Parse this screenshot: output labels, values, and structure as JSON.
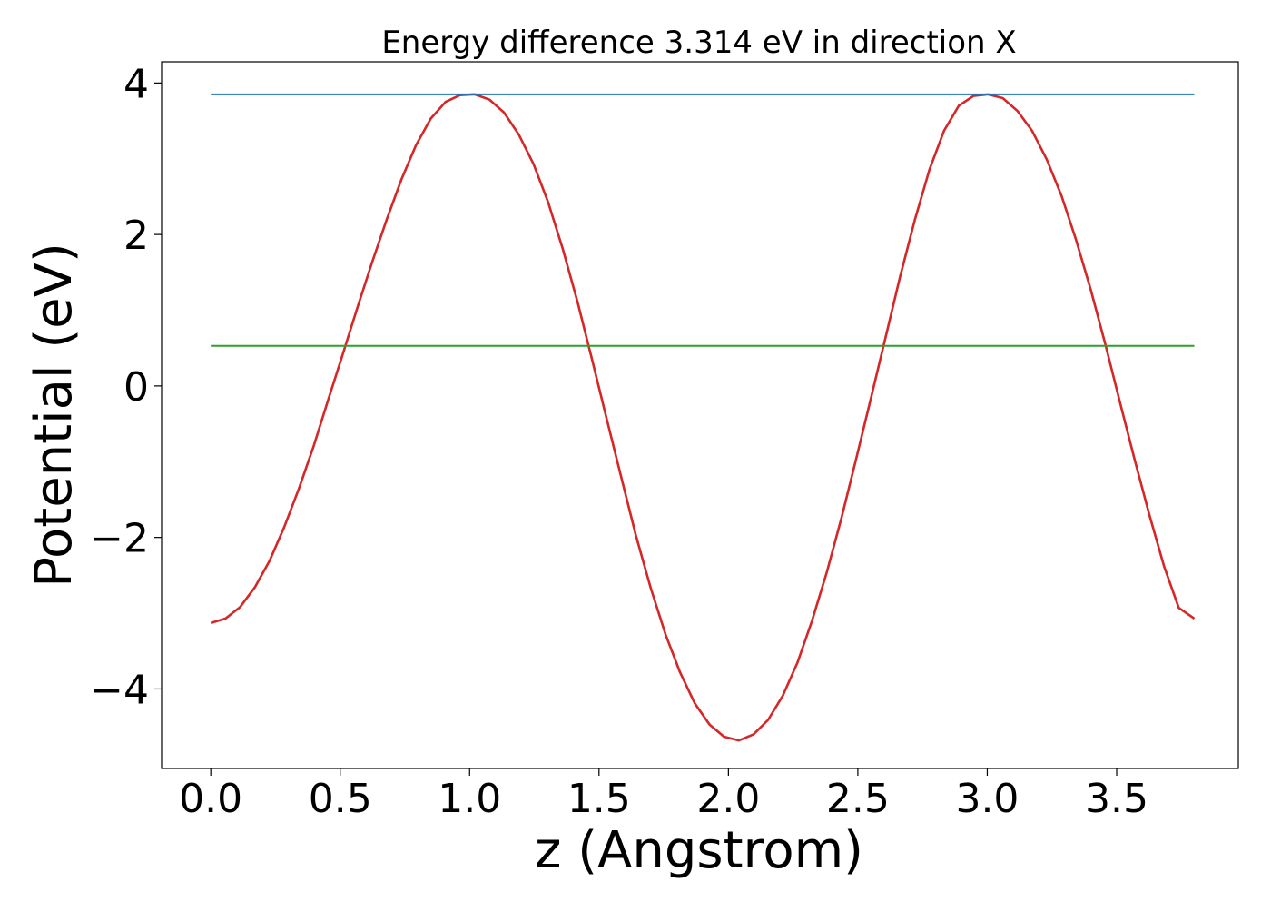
{
  "chart_data": {
    "type": "line",
    "title": "Energy difference 3.314 eV in direction X",
    "xlabel": "z (Angstrom)",
    "ylabel": "Potential (eV)",
    "xlim": [
      -0.19,
      3.97
    ],
    "ylim": [
      -5.05,
      4.28
    ],
    "xticks": [
      0.0,
      0.5,
      1.0,
      1.5,
      2.0,
      2.5,
      3.0,
      3.5
    ],
    "xtick_labels": [
      "0.0",
      "0.5",
      "1.0",
      "1.5",
      "2.0",
      "2.5",
      "3.0",
      "3.5"
    ],
    "yticks": [
      -4,
      -2,
      0,
      2,
      4
    ],
    "ytick_labels": [
      "−4",
      "−2",
      "0",
      "2",
      "4"
    ],
    "grid": false,
    "series": [
      {
        "color": "#d62728",
        "x": [
          0.0,
          0.057,
          0.113,
          0.17,
          0.227,
          0.283,
          0.34,
          0.397,
          0.453,
          0.51,
          0.567,
          0.623,
          0.68,
          0.737,
          0.793,
          0.85,
          0.907,
          0.963,
          1.02,
          1.077,
          1.133,
          1.19,
          1.247,
          1.303,
          1.36,
          1.417,
          1.473,
          1.53,
          1.587,
          1.643,
          1.7,
          1.757,
          1.813,
          1.87,
          1.927,
          1.983,
          2.04,
          2.097,
          2.153,
          2.21,
          2.267,
          2.323,
          2.38,
          2.437,
          2.493,
          2.55,
          2.607,
          2.663,
          2.72,
          2.777,
          2.833,
          2.89,
          2.947,
          3.003,
          3.06,
          3.117,
          3.173,
          3.23,
          3.287,
          3.343,
          3.4,
          3.457,
          3.513,
          3.57,
          3.627,
          3.683,
          3.74,
          3.8
        ],
        "y": [
          -3.13,
          -3.07,
          -2.92,
          -2.66,
          -2.31,
          -1.87,
          -1.36,
          -0.8,
          -0.19,
          0.42,
          1.04,
          1.63,
          2.2,
          2.73,
          3.18,
          3.53,
          3.75,
          3.84,
          3.85,
          3.78,
          3.61,
          3.32,
          2.93,
          2.43,
          1.81,
          1.11,
          0.35,
          -0.44,
          -1.22,
          -1.98,
          -2.67,
          -3.28,
          -3.78,
          -4.19,
          -4.47,
          -4.63,
          -4.68,
          -4.6,
          -4.41,
          -4.09,
          -3.65,
          -3.1,
          -2.46,
          -1.74,
          -0.97,
          -0.17,
          0.64,
          1.44,
          2.19,
          2.86,
          3.37,
          3.7,
          3.83,
          3.85,
          3.8,
          3.63,
          3.37,
          2.99,
          2.51,
          1.93,
          1.27,
          0.54,
          -0.22,
          -0.98,
          -1.71,
          -2.38,
          -2.93,
          -3.07
        ]
      },
      {
        "color": "#1f77b4",
        "x": [
          0.0,
          3.8
        ],
        "y": [
          3.85,
          3.85
        ]
      },
      {
        "color": "#2ca02c",
        "x": [
          0.0,
          3.8
        ],
        "y": [
          0.53,
          0.53
        ]
      }
    ]
  }
}
